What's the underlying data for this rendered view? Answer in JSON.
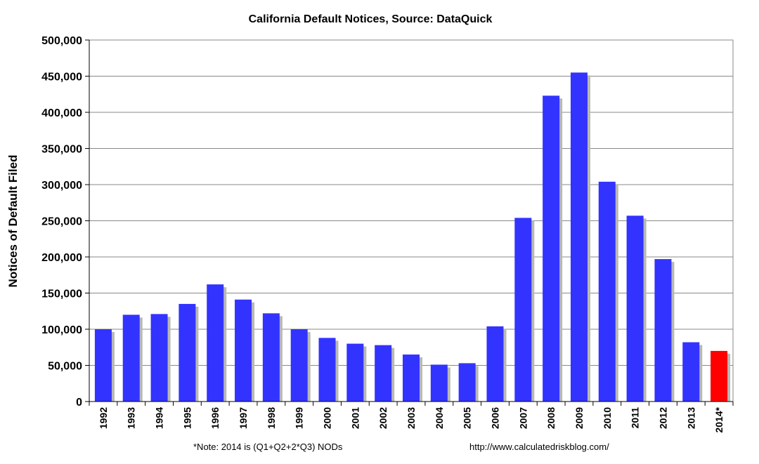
{
  "chart_data": {
    "type": "bar",
    "title": "California Default Notices, Source: DataQuick",
    "ylabel": "Notices of Default Filed",
    "xlabel": "",
    "ylim": [
      0,
      500000
    ],
    "ytick_values": [
      0,
      50000,
      100000,
      150000,
      200000,
      250000,
      300000,
      350000,
      400000,
      450000,
      500000
    ],
    "ytick_labels": [
      "0",
      "50,000",
      "100,000",
      "150,000",
      "200,000",
      "250,000",
      "300,000",
      "350,000",
      "400,000",
      "450,000",
      "500,000"
    ],
    "categories": [
      "1992",
      "1993",
      "1994",
      "1995",
      "1996",
      "1997",
      "1998",
      "1999",
      "2000",
      "2001",
      "2002",
      "2003",
      "2004",
      "2005",
      "2006",
      "2007",
      "2008",
      "2009",
      "2010",
      "2011",
      "2012",
      "2013",
      "2014*"
    ],
    "values": [
      100000,
      120000,
      121000,
      135000,
      162000,
      141000,
      122000,
      100000,
      88000,
      80000,
      78000,
      65000,
      51000,
      53000,
      104000,
      254000,
      423000,
      455000,
      304000,
      257000,
      197000,
      82000,
      70000
    ],
    "colors": [
      "#3333ff",
      "#3333ff",
      "#3333ff",
      "#3333ff",
      "#3333ff",
      "#3333ff",
      "#3333ff",
      "#3333ff",
      "#3333ff",
      "#3333ff",
      "#3333ff",
      "#3333ff",
      "#3333ff",
      "#3333ff",
      "#3333ff",
      "#3333ff",
      "#3333ff",
      "#3333ff",
      "#3333ff",
      "#3333ff",
      "#3333ff",
      "#3333ff",
      "#ff0000"
    ],
    "grid": true,
    "legend": "none",
    "footnote": "*Note: 2014 is (Q1+Q2+2*Q3) NODs",
    "source_url": "http://www.calculatedriskblog.com/"
  }
}
